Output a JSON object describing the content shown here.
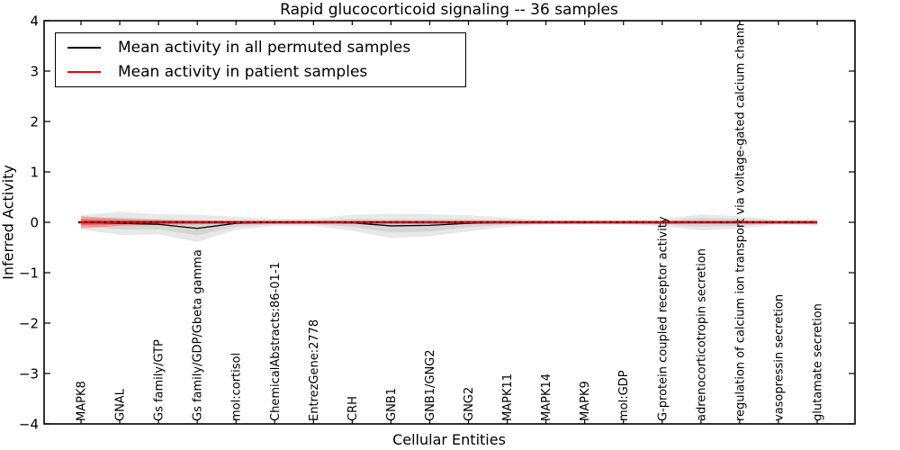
{
  "title": "Rapid glucocorticoid signaling -- 36 samples",
  "axes": {
    "xlabel": "Cellular Entities",
    "ylabel": "Inferred Activity"
  },
  "legend": {
    "entries": [
      {
        "label": "Mean activity in all permuted samples",
        "color": "#000000"
      },
      {
        "label": "Mean activity in patient samples",
        "color": "#ff0000"
      }
    ]
  },
  "colors": {
    "frame": "#000000",
    "background": "#ffffff",
    "band_gray": "#8c8c8c",
    "band_red": "#ff0000",
    "patient_line": "#e60000"
  },
  "chart_data": {
    "type": "line",
    "title": "Rapid glucocorticoid signaling -- 36 samples",
    "xlabel": "Cellular Entities",
    "ylabel": "Inferred Activity",
    "ylim": [
      -4,
      4
    ],
    "yticks": [
      4,
      3,
      2,
      1,
      0,
      -1,
      -2,
      -3,
      -4
    ],
    "ytick_labels": [
      "4",
      "3",
      "2",
      "1",
      "0",
      "−1",
      "−2",
      "−3",
      "−4"
    ],
    "grid": false,
    "legend_position": "upper left",
    "categories": [
      "MAPK8",
      "GNAL",
      "Gs family/GTP",
      "Gs family/GDP/Gbeta gamma",
      "mol:cortisol",
      "ChemicalAbstracts:86-01-1",
      "EntrezGene:2778",
      "CRH",
      "GNB1",
      "GNB1/GNG2",
      "GNG2",
      "MAPK11",
      "MAPK14",
      "MAPK9",
      "mol:GDP",
      "G-protein coupled receptor activity",
      "adrenocorticotropin secretion",
      "regulation of calcium ion transport via voltage-gated calcium chann",
      "vasopressin secretion",
      "glutamate secretion"
    ],
    "series": [
      {
        "name": "Mean activity in all permuted samples",
        "color": "#000000",
        "linestyle": "solid",
        "values": [
          0,
          -0.02,
          -0.04,
          -0.12,
          -0.02,
          0,
          0,
          -0.01,
          -0.07,
          -0.06,
          -0.02,
          0,
          0,
          0,
          0,
          -0.01,
          0,
          0,
          0,
          0
        ]
      },
      {
        "name": "Mean activity in patient samples",
        "color": "#e60000",
        "linestyle": "solid",
        "values": [
          0,
          0,
          0,
          0,
          0,
          0,
          0,
          0,
          0,
          0,
          0,
          0,
          0,
          0,
          0,
          0,
          0,
          0,
          0,
          0
        ]
      }
    ],
    "reference_line": {
      "y": 0,
      "color": "#000000",
      "linestyle": "dotted"
    },
    "bands": [
      {
        "name": "permuted-spread-outer",
        "color": "#8c8c8c",
        "opacity": 0.2,
        "center": "permuted",
        "half_widths": [
          0.14,
          0.23,
          0.2,
          0.27,
          0.13,
          0.07,
          0.07,
          0.16,
          0.24,
          0.22,
          0.16,
          0.09,
          0.05,
          0.05,
          0.05,
          0.07,
          0.16,
          0.12,
          0.05,
          0.07
        ]
      },
      {
        "name": "permuted-spread-inner",
        "color": "#8c8c8c",
        "opacity": 0.2,
        "center": "permuted",
        "half_widths": [
          0.07,
          0.12,
          0.1,
          0.14,
          0.07,
          0.04,
          0.04,
          0.08,
          0.13,
          0.12,
          0.08,
          0.05,
          0.03,
          0.03,
          0.03,
          0.04,
          0.09,
          0.07,
          0.03,
          0.04
        ]
      },
      {
        "name": "patient-spread-outer",
        "color": "#ff0000",
        "opacity": 0.28,
        "center": "patient",
        "half_widths": [
          0.12,
          0.07,
          0.05,
          0.04,
          0.03,
          0.03,
          0.03,
          0.03,
          0.03,
          0.03,
          0.03,
          0.03,
          0.03,
          0.03,
          0.03,
          0.03,
          0.03,
          0.03,
          0.03,
          0.03
        ]
      },
      {
        "name": "patient-spread-inner",
        "color": "#ff0000",
        "opacity": 0.3,
        "center": "patient",
        "half_widths": [
          0.06,
          0.04,
          0.03,
          0.02,
          0.02,
          0.02,
          0.02,
          0.02,
          0.02,
          0.02,
          0.02,
          0.02,
          0.02,
          0.02,
          0.02,
          0.02,
          0.02,
          0.02,
          0.02,
          0.02
        ]
      }
    ]
  }
}
